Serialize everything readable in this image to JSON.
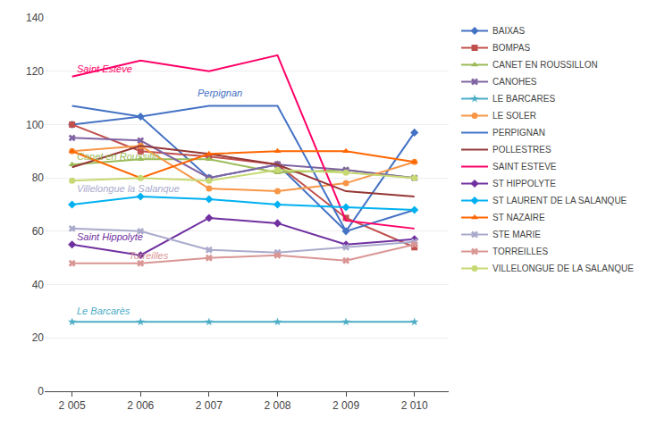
{
  "chart_data": {
    "type": "line",
    "x": [
      2005,
      2006,
      2007,
      2008,
      2009,
      2010
    ],
    "xlim": [
      2004.6,
      2010.5
    ],
    "xticks": [
      {
        "value": 2005,
        "label": "2 005"
      },
      {
        "value": 2006,
        "label": "2 006"
      },
      {
        "value": 2007,
        "label": "2 007"
      },
      {
        "value": 2008,
        "label": "2 008"
      },
      {
        "value": 2009,
        "label": "2 009"
      },
      {
        "value": 2010,
        "label": "2 010"
      }
    ],
    "ylim": [
      0,
      140
    ],
    "yticks": [
      0,
      20,
      40,
      60,
      80,
      100,
      120,
      140
    ],
    "grid": "y",
    "legend": "right",
    "series": [
      {
        "name": "BAIXAS",
        "color": "#4472C4",
        "marker": "diamond",
        "values": [
          100,
          103,
          80,
          85,
          60,
          97
        ]
      },
      {
        "name": "BOMPAS",
        "color": "#C0504D",
        "marker": "square",
        "values": [
          100,
          90,
          88,
          85,
          65,
          54
        ]
      },
      {
        "name": "CANET EN ROUSSILLON",
        "color": "#9BBB59",
        "marker": "triangle-up",
        "values": [
          85,
          87,
          87,
          82,
          83,
          80
        ]
      },
      {
        "name": "CANOHES",
        "color": "#8064A2",
        "marker": "x",
        "values": [
          95,
          94,
          80,
          85,
          83,
          80
        ]
      },
      {
        "name": "LE BARCARES",
        "color": "#4BACC6",
        "marker": "star",
        "values": [
          26,
          26,
          26,
          26,
          26,
          26
        ]
      },
      {
        "name": "LE SOLER",
        "color": "#F79646",
        "marker": "circle",
        "values": [
          90,
          92,
          76,
          75,
          78,
          86
        ]
      },
      {
        "name": "PERPIGNAN",
        "color": "#4472C4",
        "marker": "none",
        "values": [
          107,
          103,
          107,
          107,
          60,
          68
        ]
      },
      {
        "name": "POLLESTRES",
        "color": "#953735",
        "marker": "none",
        "values": [
          84,
          92,
          89,
          85,
          75,
          73
        ]
      },
      {
        "name": "SAINT ESTEVE",
        "color": "#FF0066",
        "marker": "none",
        "values": [
          118,
          124,
          120,
          126,
          64,
          61
        ]
      },
      {
        "name": "ST HIPPOLYTE",
        "color": "#7030A0",
        "marker": "diamond",
        "values": [
          55,
          51,
          65,
          63,
          55,
          57
        ]
      },
      {
        "name": "ST LAURENT DE LA SALANQUE",
        "color": "#00B0F0",
        "marker": "diamond",
        "values": [
          70,
          73,
          72,
          70,
          69,
          68
        ]
      },
      {
        "name": "ST NAZAIRE",
        "color": "#FF6600",
        "marker": "triangle-up",
        "values": [
          90,
          80,
          89,
          90,
          90,
          86
        ]
      },
      {
        "name": "STE MARIE",
        "color": "#AAAACC",
        "marker": "x",
        "values": [
          61,
          60,
          53,
          52,
          54,
          56
        ]
      },
      {
        "name": "TORREILLES",
        "color": "#D99694",
        "marker": "x",
        "values": [
          48,
          48,
          50,
          51,
          49,
          55
        ]
      },
      {
        "name": "VILLELONGUE DE LA SALANQUE",
        "color": "#C6D972",
        "marker": "circle",
        "values": [
          79,
          80,
          79,
          83,
          82,
          80
        ]
      }
    ],
    "annotations": [
      {
        "text": "Saint Estève",
        "x": 2005.05,
        "y": 121,
        "color": "#FF0066"
      },
      {
        "text": "Perpignan",
        "x": 2006.8,
        "y": 112,
        "color": "#4472C4"
      },
      {
        "text": "Canet en Roussillo…",
        "x": 2005.05,
        "y": 88,
        "color": "#9BBB59"
      },
      {
        "text": "Villelongue la Salanque",
        "x": 2005.05,
        "y": 76,
        "color": "#AAAACC"
      },
      {
        "text": "Saint Hippolyte",
        "x": 2005.05,
        "y": 58,
        "color": "#7030A0"
      },
      {
        "text": "Torreilles",
        "x": 2005.8,
        "y": 51,
        "color": "#D99694"
      },
      {
        "text": "Le Barcarès",
        "x": 2005.05,
        "y": 30,
        "color": "#4BACC6"
      }
    ]
  }
}
